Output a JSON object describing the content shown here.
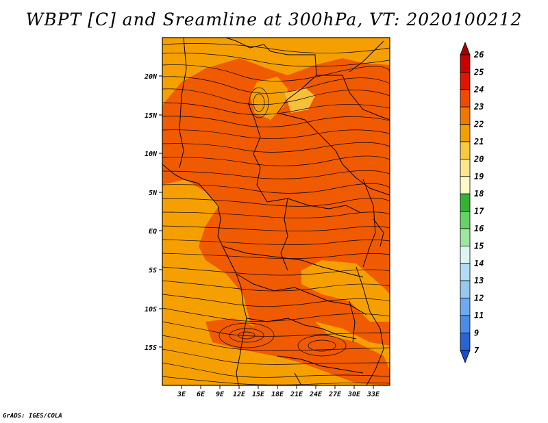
{
  "map": {
    "title": "WBPT [C] and Sreamline at 300hPa, VT: 2020100212",
    "credit": "GrADS: IGES/COLA",
    "lat_labels": [
      "20N",
      "15N",
      "10N",
      "5N",
      "EQ",
      "5S",
      "10S",
      "15S"
    ],
    "lon_labels": [
      "3E",
      "6E",
      "9E",
      "12E",
      "15E",
      "18E",
      "21E",
      "24E",
      "27E",
      "30E",
      "33E"
    ],
    "colorbar": {
      "labels": [
        "26",
        "25",
        "24",
        "23",
        "22",
        "21",
        "20",
        "19",
        "18",
        "17",
        "16",
        "15",
        "14",
        "13",
        "12",
        "11",
        "9",
        "7"
      ],
      "colors": [
        "#a50000",
        "#c80000",
        "#e11400",
        "#f04a00",
        "#f07800",
        "#f0a000",
        "#f8c840",
        "#fae68c",
        "#fff8c8",
        "#32b432",
        "#64d264",
        "#a0e6a0",
        "#dcf5f0",
        "#b4dcf5",
        "#96c8f0",
        "#6eaaf0",
        "#4a8ce6",
        "#2864d2",
        "#1e4bc8"
      ]
    },
    "colors": {
      "high": "#f05a00",
      "low": "#f5a000",
      "pale": "#f8c03a"
    }
  }
}
